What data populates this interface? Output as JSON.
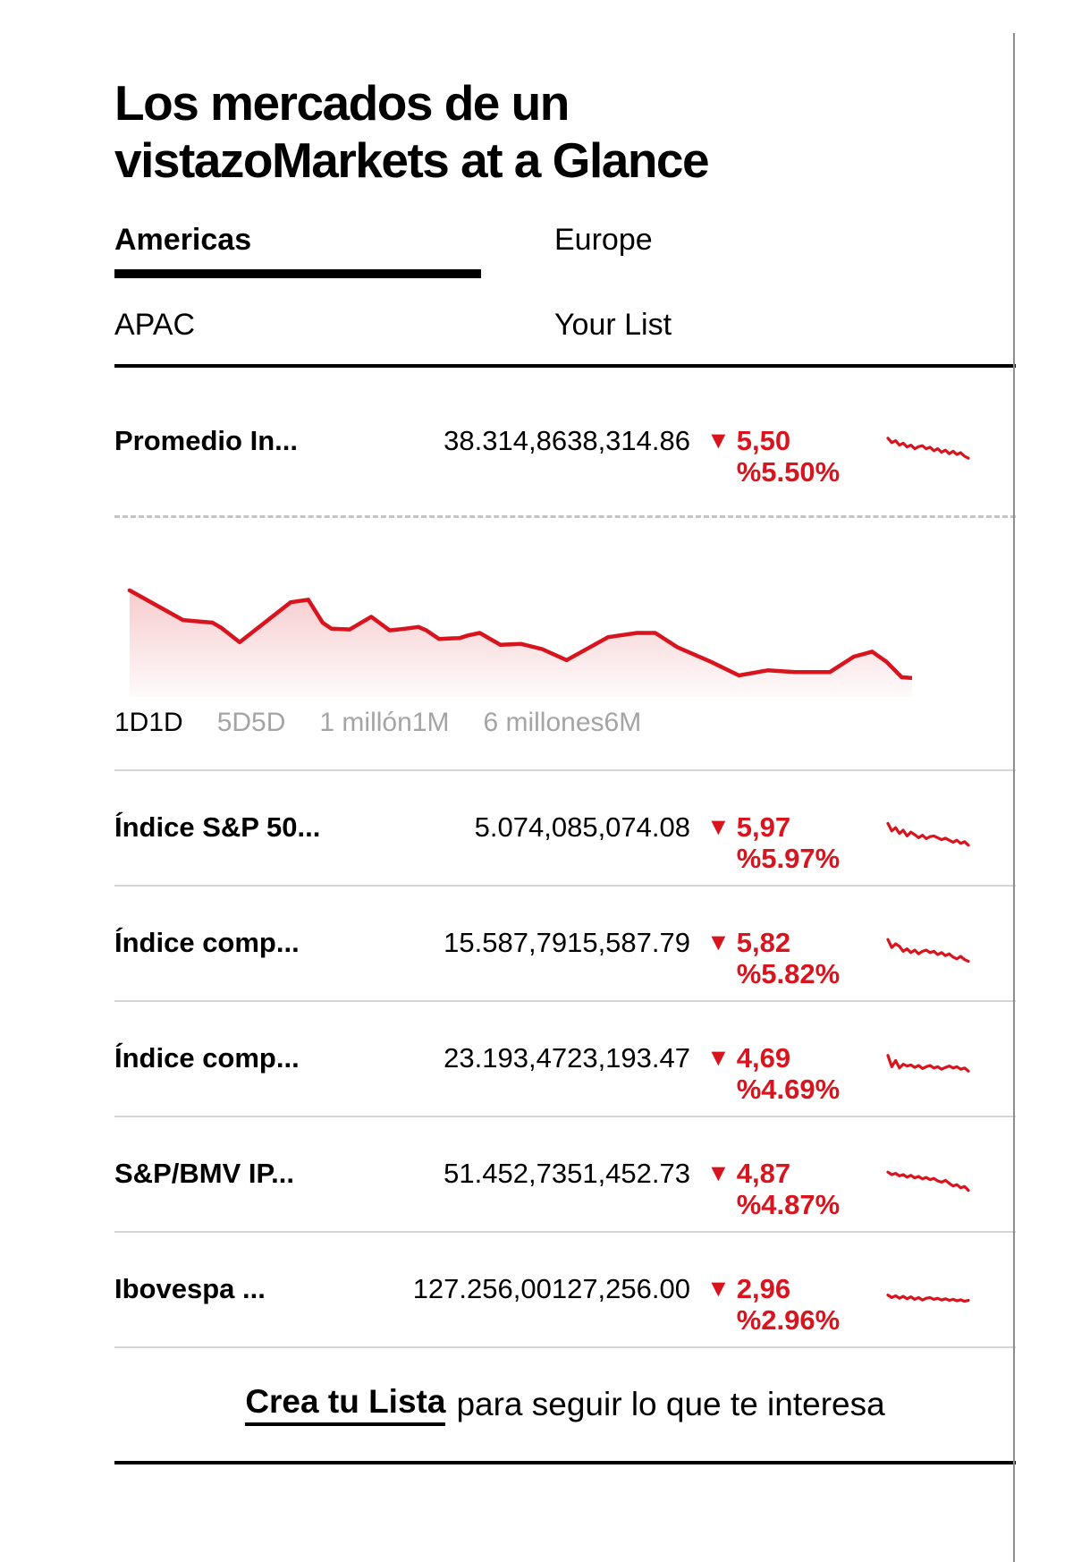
{
  "colors": {
    "negative": "#d8151e",
    "inactive_gray": "#a4a4a4",
    "separator_gray": "#d4d4d4",
    "border_gray": "#8d8d8d"
  },
  "title": {
    "line1": "Los mercados de un",
    "line2": "vistazoMarkets at a Glance"
  },
  "tabs": [
    {
      "label": "Americas",
      "active": true
    },
    {
      "label": "Europe",
      "active": false
    },
    {
      "label": "APAC",
      "active": false
    },
    {
      "label": "Your List",
      "active": false
    }
  ],
  "time_ranges": [
    {
      "label": "1D1D",
      "active": true
    },
    {
      "label": "5D5D",
      "active": false
    },
    {
      "label": "1 millón1M",
      "active": false
    },
    {
      "label": "6 millones6M",
      "active": false
    }
  ],
  "rows": [
    {
      "label": "Promedio In...",
      "value": "38.314,8638,314.86",
      "direction": "down",
      "change_line1": "5,50",
      "change_line2": "%5.50%",
      "spark": [
        0.1,
        0.28,
        0.2,
        0.38,
        0.3,
        0.45,
        0.38,
        0.52,
        0.44,
        0.4,
        0.52,
        0.46,
        0.6,
        0.52,
        0.66,
        0.58,
        0.72,
        0.62,
        0.75,
        0.68,
        0.82,
        0.9
      ]
    },
    {
      "label": "Índice S&P 50...",
      "value": "5.074,085,074.08",
      "direction": "down",
      "change_line1": "5,97",
      "change_line2": "%5.97%",
      "spark": [
        0.05,
        0.35,
        0.22,
        0.45,
        0.32,
        0.55,
        0.4,
        0.5,
        0.62,
        0.52,
        0.66,
        0.58,
        0.55,
        0.62,
        0.7,
        0.64,
        0.72,
        0.8,
        0.72,
        0.85,
        0.78,
        0.92
      ]
    },
    {
      "label": "Índice comp...",
      "value": "15.587,7915,587.79",
      "direction": "down",
      "change_line1": "5,82",
      "change_line2": "%5.82%",
      "spark": [
        0.08,
        0.4,
        0.25,
        0.35,
        0.55,
        0.45,
        0.6,
        0.5,
        0.65,
        0.55,
        0.5,
        0.6,
        0.55,
        0.68,
        0.6,
        0.72,
        0.65,
        0.78,
        0.85,
        0.75,
        0.88,
        0.95
      ]
    },
    {
      "label": "Índice comp...",
      "value": "23.193,4723,193.47",
      "direction": "down",
      "change_line1": "4,69",
      "change_line2": "%4.69%",
      "spark": [
        0.1,
        0.55,
        0.3,
        0.6,
        0.45,
        0.52,
        0.48,
        0.58,
        0.5,
        0.62,
        0.55,
        0.5,
        0.6,
        0.55,
        0.65,
        0.58,
        0.52,
        0.6,
        0.55,
        0.65,
        0.6,
        0.72
      ]
    },
    {
      "label": "S&P/BMV IP...",
      "value": "51.452,7351,452.73",
      "direction": "down",
      "change_line1": "4,87",
      "change_line2": "%4.87%",
      "spark": [
        0.15,
        0.25,
        0.2,
        0.3,
        0.25,
        0.35,
        0.28,
        0.38,
        0.32,
        0.42,
        0.36,
        0.45,
        0.4,
        0.5,
        0.55,
        0.48,
        0.6,
        0.7,
        0.65,
        0.78,
        0.72,
        0.88
      ]
    },
    {
      "label": "Ibovespa ...",
      "value": "127.256,00127,256.00",
      "direction": "down",
      "change_line1": "2,96",
      "change_line2": "%2.96%",
      "spark": [
        0.45,
        0.55,
        0.48,
        0.58,
        0.5,
        0.6,
        0.52,
        0.62,
        0.55,
        0.65,
        0.58,
        0.55,
        0.62,
        0.58,
        0.65,
        0.6,
        0.66,
        0.62,
        0.68,
        0.64,
        0.7,
        0.66
      ]
    }
  ],
  "chart_data": {
    "type": "area",
    "series_name": "Promedio In... 1D",
    "trend": "declining",
    "points": [
      [
        0.019,
        0.016
      ],
      [
        0.086,
        0.3
      ],
      [
        0.123,
        0.325
      ],
      [
        0.134,
        0.374
      ],
      [
        0.157,
        0.512
      ],
      [
        0.221,
        0.13
      ],
      [
        0.243,
        0.106
      ],
      [
        0.261,
        0.325
      ],
      [
        0.272,
        0.382
      ],
      [
        0.295,
        0.39
      ],
      [
        0.322,
        0.268
      ],
      [
        0.345,
        0.398
      ],
      [
        0.365,
        0.382
      ],
      [
        0.381,
        0.366
      ],
      [
        0.391,
        0.398
      ],
      [
        0.407,
        0.48
      ],
      [
        0.433,
        0.472
      ],
      [
        0.443,
        0.447
      ],
      [
        0.458,
        0.423
      ],
      [
        0.484,
        0.537
      ],
      [
        0.51,
        0.528
      ],
      [
        0.536,
        0.577
      ],
      [
        0.567,
        0.683
      ],
      [
        0.619,
        0.463
      ],
      [
        0.655,
        0.423
      ],
      [
        0.678,
        0.423
      ],
      [
        0.706,
        0.561
      ],
      [
        0.748,
        0.699
      ],
      [
        0.783,
        0.829
      ],
      [
        0.819,
        0.78
      ],
      [
        0.853,
        0.797
      ],
      [
        0.897,
        0.797
      ],
      [
        0.927,
        0.65
      ],
      [
        0.95,
        0.602
      ],
      [
        0.968,
        0.699
      ],
      [
        0.987,
        0.846
      ],
      [
        1.0,
        0.854
      ]
    ]
  },
  "footer": {
    "link_label": "Crea tu Lista",
    "text": "para seguir lo que te interesa"
  }
}
